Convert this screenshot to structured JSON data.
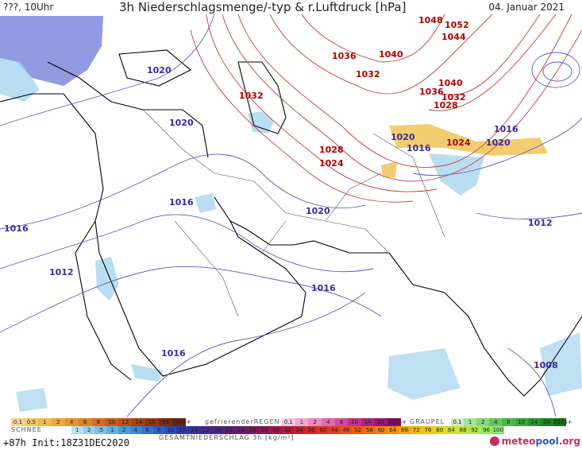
{
  "header": {
    "run_label": "???, 10Uhr",
    "title": "3h Niederschlagsmenge/-typ & r.Luftdruck [hPa]",
    "date": "04. Januar 2021"
  },
  "isobars_red": [
    {
      "label": "1048"
    },
    {
      "label": "1052"
    },
    {
      "label": "1044"
    },
    {
      "label": "1036"
    },
    {
      "label": "1040"
    },
    {
      "label": "1032"
    },
    {
      "label": "1032"
    },
    {
      "label": "1040"
    },
    {
      "label": "1036"
    },
    {
      "label": "1032"
    },
    {
      "label": "1028"
    },
    {
      "label": "1028"
    },
    {
      "label": "1024"
    },
    {
      "label": "1024"
    }
  ],
  "isobars_blue": [
    {
      "label": "1020"
    },
    {
      "label": "1020"
    },
    {
      "label": "1020"
    },
    {
      "label": "1016"
    },
    {
      "label": "1020"
    },
    {
      "label": "1016"
    },
    {
      "label": "1016"
    },
    {
      "label": "1020"
    },
    {
      "label": "1016"
    },
    {
      "label": "1012"
    },
    {
      "label": "1012"
    },
    {
      "label": "1016"
    },
    {
      "label": "1016"
    },
    {
      "label": "1008"
    }
  ],
  "legend": {
    "snow": {
      "title": "SCHNEE",
      "ticks": [
        "0.1",
        "0.5",
        "1",
        "2",
        "4",
        "6",
        "8",
        "10",
        "12",
        "14",
        "16",
        "18",
        "2025+"
      ],
      "colors": [
        "#f3d58a",
        "#f0c86a",
        "#efb850",
        "#eca63a",
        "#e6942c",
        "#de8224",
        "#d4701e",
        "#c85e1a",
        "#b84e18",
        "#a64016",
        "#923414",
        "#7e2a12",
        "#6a2210"
      ]
    },
    "freezing_rain": {
      "title": "gefrierenderREGEN",
      "ticks": [
        "0.1",
        "1",
        "2",
        "4",
        "8",
        "10",
        "14",
        "16",
        "2025+"
      ],
      "colors": [
        "#f6c8e0",
        "#f0a8d0",
        "#ea88c0",
        "#e068b0",
        "#d448a0",
        "#c43090",
        "#b02080",
        "#9a1470",
        "#840c60"
      ]
    },
    "hail": {
      "title": "GRAUPEL",
      "ticks": [
        "0.1",
        "1",
        "2",
        "4",
        "8",
        "10",
        "14",
        "16",
        "2025+"
      ],
      "colors": [
        "#c8ecc0",
        "#a8e09c",
        "#88d47c",
        "#68c660",
        "#4cb848",
        "#38a838",
        "#28962c",
        "#1c8422",
        "#12721a"
      ]
    },
    "total": {
      "title": "GESAMTNIEDERSCHLAG 3h [kg/m²]",
      "ticks": [
        "1",
        "2",
        ".5",
        "1",
        "2",
        "4",
        "6",
        "8",
        "10",
        "12",
        "14",
        "16",
        "20",
        "22",
        "24",
        "26",
        "28",
        "30",
        "32",
        "34",
        "36",
        "40",
        "44",
        "48",
        "52",
        "56",
        "60",
        "64",
        "68",
        "72",
        "76",
        "80",
        "84",
        "88",
        "92",
        "96",
        "100"
      ],
      "colors": [
        "#b8dff0",
        "#98d0ec",
        "#7cc2e8",
        "#5eb0e2",
        "#4a9cdc",
        "#3c88d4",
        "#3274cc",
        "#2a60c2",
        "#2a4cb6",
        "#2e3aa8",
        "#36309a",
        "#40288c",
        "#4c2280",
        "#5a1e74",
        "#6a1a68",
        "#7a185c",
        "#8a1850",
        "#9a1a44",
        "#aa1e3a",
        "#ba2430",
        "#c82c28",
        "#d43622",
        "#de421c",
        "#e65018",
        "#ec5e14",
        "#f06e12",
        "#f28010",
        "#f49210",
        "#f4a412",
        "#f2b616",
        "#eec61c",
        "#e6d424",
        "#d6de30",
        "#c2e43e",
        "#aee84e",
        "#98ea5e",
        "#84ea70"
      ]
    }
  },
  "footer": {
    "init": "+87h  Init:18Z31DEC2020",
    "brand_a": "meteo",
    "brand_b": "pool",
    "brand_c": ".org"
  }
}
